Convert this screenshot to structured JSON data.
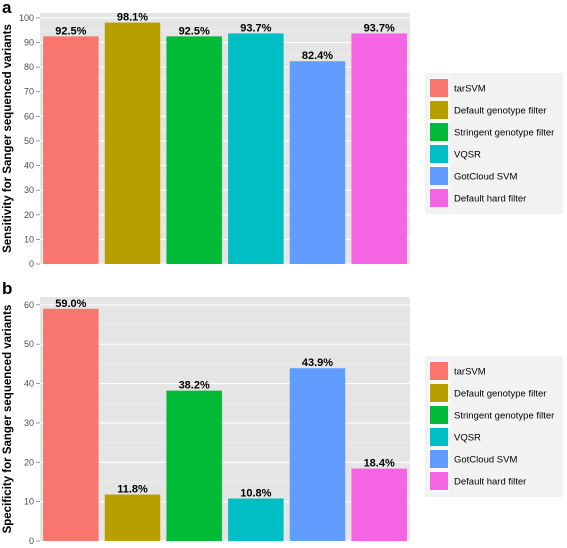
{
  "chart_data": [
    {
      "panel": "a",
      "type": "bar",
      "categories": [
        "tarSVM",
        "Default genotype filter",
        "Stringent genotype filter",
        "VQSR",
        "GotCloud SVM",
        "Default hard filter"
      ],
      "values": [
        92.5,
        98.1,
        92.5,
        93.7,
        82.4,
        93.7
      ],
      "data_labels": [
        "92.5%",
        "98.1%",
        "92.5%",
        "93.7%",
        "82.4%",
        "93.7%"
      ],
      "colors": [
        "#F8766D",
        "#B79F00",
        "#00BA38",
        "#00BFC4",
        "#619CFF",
        "#F564E3"
      ],
      "ylabel": "Sensitivity for Sanger sequenced variants",
      "xlabel": "",
      "ylim": [
        0,
        102
      ],
      "yticks": [
        0,
        10,
        20,
        30,
        40,
        50,
        60,
        70,
        80,
        90,
        100
      ],
      "grid": true,
      "legend_position": "right",
      "legend": [
        "tarSVM",
        "Default genotype filter",
        "Stringent genotype filter",
        "VQSR",
        "GotCloud SVM",
        "Default hard filter"
      ]
    },
    {
      "panel": "b",
      "type": "bar",
      "categories": [
        "tarSVM",
        "Default genotype filter",
        "Stringent genotype filter",
        "VQSR",
        "GotCloud SVM",
        "Default hard filter"
      ],
      "values": [
        59.0,
        11.8,
        38.2,
        10.8,
        43.9,
        18.4
      ],
      "data_labels": [
        "59.0%",
        "11.8%",
        "38.2%",
        "10.8%",
        "43.9%",
        "18.4%"
      ],
      "colors": [
        "#F8766D",
        "#B79F00",
        "#00BA38",
        "#00BFC4",
        "#619CFF",
        "#F564E3"
      ],
      "ylabel": "Specificity for Sanger sequenced variants",
      "xlabel": "",
      "ylim": [
        0,
        62
      ],
      "yticks": [
        0,
        10,
        20,
        30,
        40,
        50,
        60
      ],
      "grid": true,
      "legend_position": "right",
      "legend": [
        "tarSVM",
        "Default genotype filter",
        "Stringent genotype filter",
        "VQSR",
        "GotCloud SVM",
        "Default hard filter"
      ]
    }
  ]
}
